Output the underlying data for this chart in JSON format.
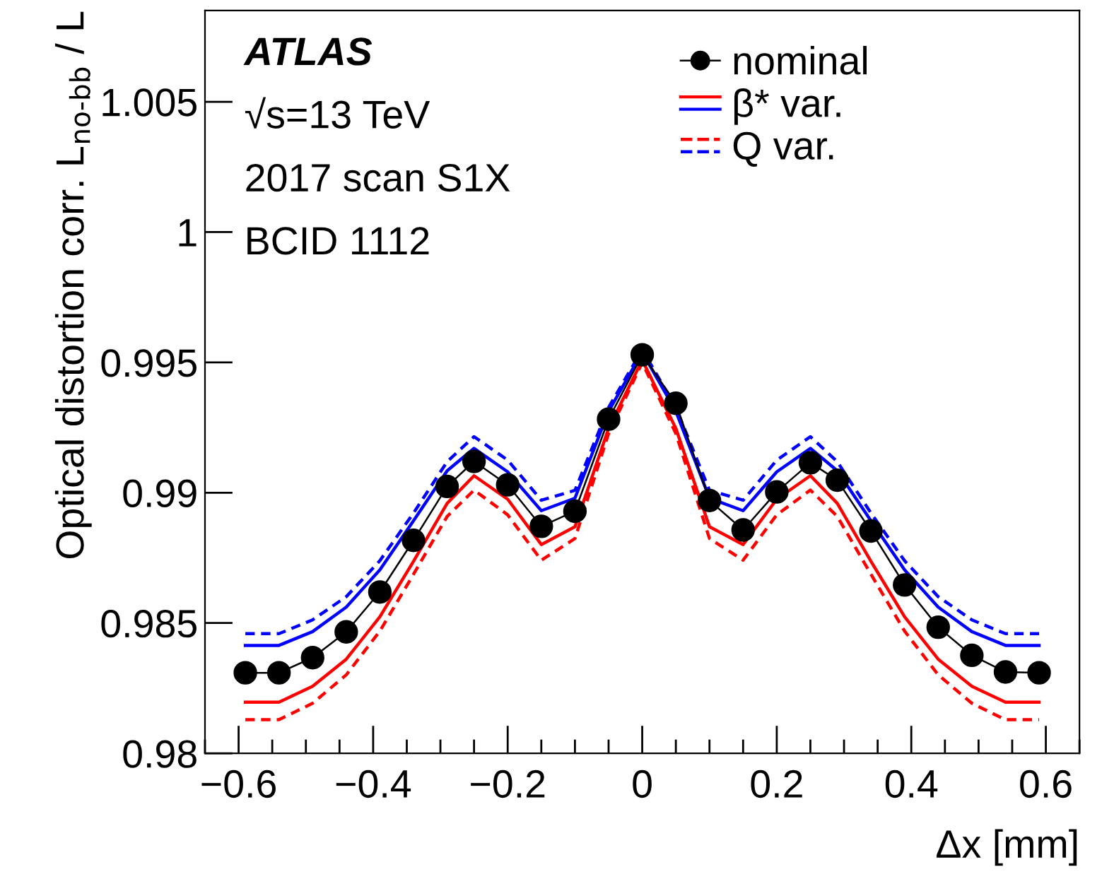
{
  "chart_data": {
    "type": "line",
    "xlabel": "Δx [mm]",
    "ylabel": "Optical distortion corr. L$_{no-bb}$ / L",
    "annotations": [
      "ATLAS",
      "√s=13 TeV",
      "2017 scan S1X",
      "BCID 1112"
    ],
    "xlim": [
      -0.65,
      0.65
    ],
    "ylim": [
      0.98,
      1.0085
    ],
    "xticks": [
      {
        "value": -0.6,
        "label": "−0.6"
      },
      {
        "value": -0.4,
        "label": "−0.4"
      },
      {
        "value": -0.2,
        "label": "−0.2"
      },
      0,
      0.2,
      0.4,
      0.6
    ],
    "yticks": [
      0.98,
      0.985,
      0.99,
      0.995,
      {
        "value": 1,
        "label": "1"
      },
      1.005
    ],
    "grid": false,
    "legend": "top right",
    "x": [
      -0.59,
      -0.54,
      -0.49,
      -0.44,
      -0.39,
      -0.34,
      -0.29,
      -0.25,
      -0.2,
      -0.15,
      -0.1,
      -0.05,
      0,
      0.05,
      0.1,
      0.15,
      0.2,
      0.25,
      0.29,
      0.34,
      0.39,
      0.44,
      0.49,
      0.54,
      0.59
    ],
    "series": [
      {
        "name": "nominal",
        "color": "#000000",
        "line_style": "solid",
        "marker": "circle",
        "values": [
          0.98309,
          0.98309,
          0.98367,
          0.98466,
          0.98619,
          0.98817,
          0.99024,
          0.9912,
          0.9903,
          0.98871,
          0.98929,
          0.99282,
          0.99529,
          0.99343,
          0.9897,
          0.98857,
          0.99003,
          0.99115,
          0.99048,
          0.98853,
          0.98646,
          0.98484,
          0.98376,
          0.98312,
          0.98309
        ]
      },
      {
        "name": "β* var.",
        "color": "#ff0000",
        "line_style": "solid",
        "marker": "none",
        "values": [
          0.98196,
          0.98196,
          0.98257,
          0.98361,
          0.98524,
          0.98737,
          0.98959,
          0.99065,
          0.98975,
          0.98801,
          0.98869,
          0.99247,
          0.99509,
          0.99247,
          0.98869,
          0.98801,
          0.98975,
          0.99065,
          0.98959,
          0.98737,
          0.98524,
          0.98361,
          0.98257,
          0.98196,
          0.98196
        ]
      },
      {
        "color": "#0000ff",
        "line_style": "solid",
        "marker": "none",
        "values": [
          0.98414,
          0.98414,
          0.98467,
          0.98561,
          0.98704,
          0.98892,
          0.99084,
          0.9917,
          0.9908,
          0.98931,
          0.98979,
          0.99312,
          0.99539,
          0.99312,
          0.98979,
          0.98931,
          0.9908,
          0.9917,
          0.99084,
          0.98892,
          0.98704,
          0.98561,
          0.98467,
          0.98414,
          0.98414
        ]
      },
      {
        "name": "Q var.",
        "color": "#ff0000",
        "line_style": "dashed",
        "marker": "none",
        "values": [
          0.98129,
          0.98129,
          0.98192,
          0.98301,
          0.98469,
          0.98687,
          0.98909,
          0.9901,
          0.98915,
          0.98741,
          0.98824,
          0.99227,
          0.99499,
          0.99227,
          0.98824,
          0.98741,
          0.98915,
          0.9901,
          0.98909,
          0.98687,
          0.98469,
          0.98301,
          0.98192,
          0.98129,
          0.98129
        ]
      },
      {
        "color": "#0000ff",
        "line_style": "dashed",
        "marker": "none",
        "values": [
          0.98459,
          0.98459,
          0.98512,
          0.98601,
          0.98739,
          0.98922,
          0.99119,
          0.99215,
          0.99125,
          0.98971,
          0.99009,
          0.99327,
          0.99549,
          0.99327,
          0.99009,
          0.98971,
          0.99125,
          0.99215,
          0.99119,
          0.98922,
          0.98739,
          0.98601,
          0.98512,
          0.98459,
          0.98459
        ]
      }
    ]
  }
}
